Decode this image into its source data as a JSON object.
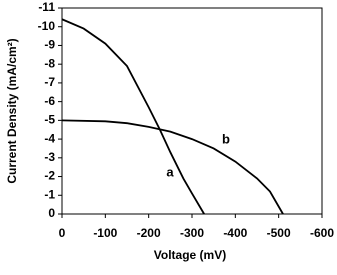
{
  "chart_data": {
    "type": "line",
    "x_label": "Voltage (mV)",
    "y_label": "Current Density (mA/cm²)",
    "xlim": [
      0,
      -600
    ],
    "ylim": [
      0,
      -11
    ],
    "xticks": [
      0,
      -100,
      -200,
      -300,
      -400,
      -500,
      -600
    ],
    "yticks": [
      0,
      -1,
      -2,
      -3,
      -4,
      -5,
      -6,
      -7,
      -8,
      -9,
      -10,
      -11
    ],
    "series": [
      {
        "name": "a",
        "color": "#000000",
        "x": [
          0,
          -50,
          -100,
          -150,
          -200,
          -226,
          -250,
          -280,
          -300,
          -328
        ],
        "values": [
          -10.4,
          -9.9,
          -9.1,
          -7.9,
          -5.7,
          -4.5,
          -3.3,
          -1.9,
          -1.1,
          0
        ]
      },
      {
        "name": "b",
        "color": "#000000",
        "x": [
          0,
          -100,
          -150,
          -200,
          -250,
          -300,
          -350,
          -400,
          -450,
          -480,
          -510
        ],
        "values": [
          -5.0,
          -4.95,
          -4.85,
          -4.65,
          -4.4,
          -4.0,
          -3.5,
          -2.8,
          -1.9,
          -1.2,
          0
        ]
      }
    ]
  }
}
